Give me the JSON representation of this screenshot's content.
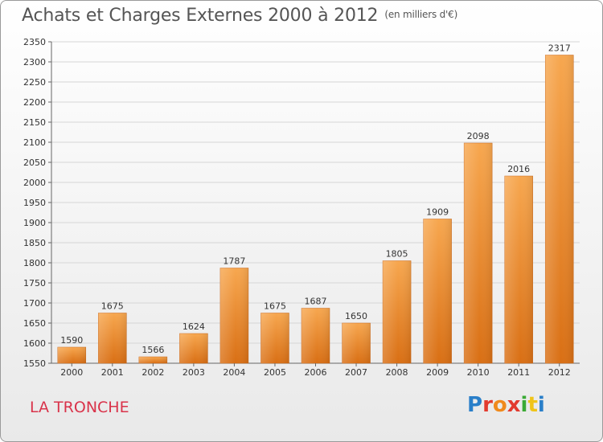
{
  "header": {
    "title": "Achats et Charges Externes 2000 à 2012",
    "unit": "(en milliers d'€)"
  },
  "footer": {
    "city": "LA TRONCHE",
    "logo": [
      "P",
      "r",
      "o",
      "x",
      "i",
      "t",
      "i"
    ],
    "logo_colors": [
      "#2a7fc9",
      "#e23a2e",
      "#f08a1c",
      "#e23a2e",
      "#3aaa35",
      "#f0c419",
      "#2a7fc9"
    ]
  },
  "colors": {
    "bar_top": "#f7a74f",
    "bar_bottom": "#d96f14",
    "grid": "#d6d6d6",
    "axis": "#666666"
  },
  "chart_data": {
    "type": "bar",
    "title": "Achats et Charges Externes 2000 à 2012",
    "categories": [
      "2000",
      "2001",
      "2002",
      "2003",
      "2004",
      "2005",
      "2006",
      "2007",
      "2008",
      "2009",
      "2010",
      "2011",
      "2012"
    ],
    "values": [
      1590,
      1675,
      1566,
      1624,
      1787,
      1675,
      1687,
      1650,
      1805,
      1909,
      2098,
      2016,
      2317
    ],
    "ylim": [
      1550,
      2350
    ],
    "yticks": [
      1550,
      1600,
      1650,
      1700,
      1750,
      1800,
      1850,
      1900,
      1950,
      2000,
      2050,
      2100,
      2150,
      2200,
      2250,
      2300,
      2350
    ],
    "grid": true,
    "xlabel": "",
    "ylabel": ""
  }
}
